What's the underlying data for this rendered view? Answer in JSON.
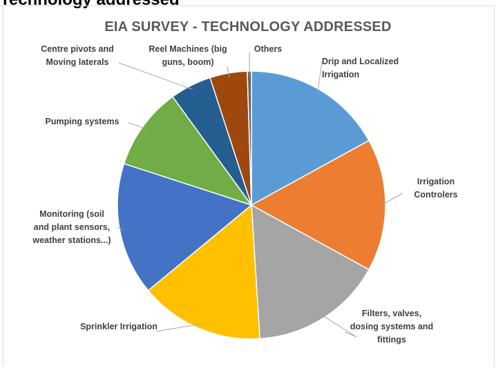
{
  "page": {
    "heading_fragment": "Technology addressed"
  },
  "colors": {
    "drip": "#5b9bd5",
    "controllers": "#ed7d31",
    "filters": "#a5a5a5",
    "sprinkler": "#ffc000",
    "monitoring": "#4472c4",
    "pumping": "#70ad47",
    "pivots": "#255e91",
    "reel": "#9e480e",
    "others": "#636363",
    "label": "#404040",
    "title": "#595959"
  },
  "chart_data": {
    "type": "pie",
    "title": "EIA SURVEY - TECHNOLOGY ADDRESSED",
    "legend": "none (category labels beside slices with leader lines)",
    "slices": [
      {
        "label": "Drip and Localized Irrigation",
        "value": 17,
        "color": "#5b9bd5"
      },
      {
        "label": "Irrigation Controlers",
        "value": 16,
        "color": "#ed7d31"
      },
      {
        "label": "Filters, valves, dosing systems and fittings",
        "value": 16,
        "color": "#a5a5a5"
      },
      {
        "label": "Sprinkler Irrigation",
        "value": 15,
        "color": "#ffc000"
      },
      {
        "label": "Monitoring (soil and plant sensors, weather stations...)",
        "value": 16,
        "color": "#4472c4"
      },
      {
        "label": "Pumping systems",
        "value": 10,
        "color": "#70ad47"
      },
      {
        "label": "Centre pivots and Moving laterals",
        "value": 5,
        "color": "#255e91"
      },
      {
        "label": "Reel Machines (big guns, boom)",
        "value": 4.5,
        "color": "#9e480e"
      },
      {
        "label": "Others",
        "value": 0.5,
        "color": "#636363"
      }
    ],
    "label_lines": [
      [
        "Drip and Localized",
        "Irrigation"
      ],
      [
        "Irrigation",
        "Controlers"
      ],
      [
        "Filters, valves,",
        "dosing systems and",
        "fittings"
      ],
      [
        "Sprinkler Irrigation"
      ],
      [
        "Monitoring (soil",
        "and plant sensors,",
        "weather stations...)"
      ],
      [
        "Pumping systems"
      ],
      [
        "Centre pivots and",
        "Moving laterals"
      ],
      [
        "Reel Machines (big",
        "guns, boom)"
      ],
      [
        "Others"
      ]
    ]
  }
}
